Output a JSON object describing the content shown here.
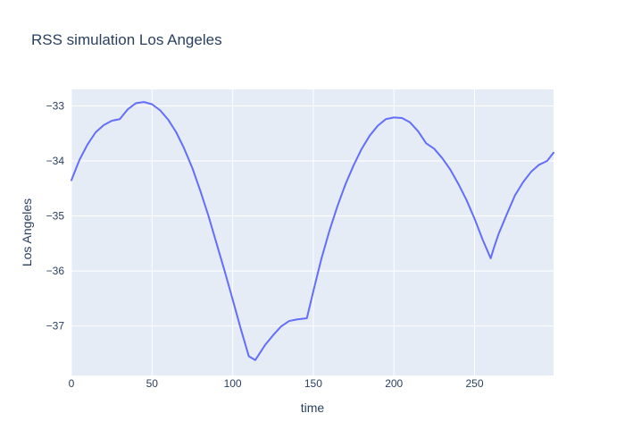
{
  "chart_data": {
    "type": "line",
    "title": "RSS simulation Los Angeles",
    "xlabel": "time",
    "ylabel": "Los Angeles",
    "xlim": [
      0,
      299
    ],
    "ylim": [
      -37.9,
      -32.7
    ],
    "x_ticks": [
      0,
      50,
      100,
      150,
      200,
      250
    ],
    "y_ticks": [
      -33,
      -34,
      -35,
      -36,
      -37
    ],
    "y_tick_labels": [
      "−33",
      "−34",
      "−35",
      "−36",
      "−37"
    ],
    "grid": true,
    "legend": "none",
    "colors": {
      "plot_bg": "#e5ecf6",
      "grid": "#ffffff",
      "line": "#636efa",
      "text": "#2a3f5f"
    },
    "series": [
      {
        "color": "#636efa",
        "x": [
          0,
          5,
          10,
          15,
          20,
          25,
          30,
          35,
          40,
          45,
          50,
          55,
          60,
          65,
          70,
          75,
          80,
          85,
          90,
          95,
          100,
          105,
          110,
          114,
          120,
          125,
          130,
          135,
          140,
          146,
          150,
          155,
          160,
          165,
          170,
          175,
          180,
          185,
          190,
          195,
          200,
          205,
          210,
          215,
          220,
          225,
          230,
          235,
          240,
          245,
          250,
          255,
          260,
          262,
          265,
          270,
          275,
          280,
          285,
          290,
          295,
          299
        ],
        "y": [
          -34.35,
          -33.98,
          -33.7,
          -33.48,
          -33.35,
          -33.27,
          -33.24,
          -33.06,
          -32.95,
          -32.93,
          -32.97,
          -33.08,
          -33.25,
          -33.48,
          -33.78,
          -34.13,
          -34.55,
          -35.0,
          -35.5,
          -36.0,
          -36.52,
          -37.05,
          -37.55,
          -37.62,
          -37.35,
          -37.17,
          -37.01,
          -36.91,
          -36.88,
          -36.86,
          -36.37,
          -35.78,
          -35.27,
          -34.82,
          -34.42,
          -34.08,
          -33.78,
          -33.54,
          -33.36,
          -33.24,
          -33.21,
          -33.22,
          -33.3,
          -33.46,
          -33.68,
          -33.78,
          -33.95,
          -34.16,
          -34.42,
          -34.71,
          -35.05,
          -35.43,
          -35.77,
          -35.58,
          -35.32,
          -34.97,
          -34.63,
          -34.39,
          -34.2,
          -34.07,
          -34.0,
          -33.85
        ]
      }
    ]
  }
}
